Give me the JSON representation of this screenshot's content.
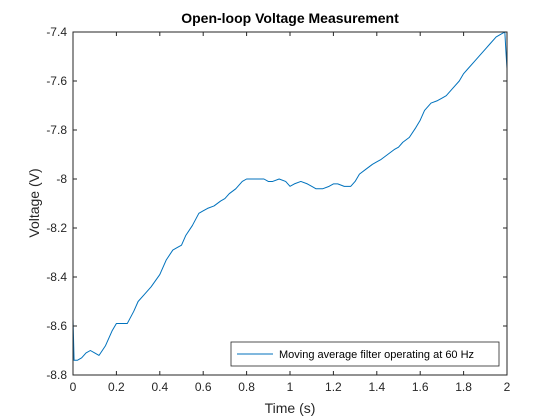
{
  "chart_data": {
    "type": "line",
    "title": "Open-loop Voltage Measurement",
    "xlabel": "Time (s)",
    "ylabel": "Voltage (V)",
    "xlim": [
      0,
      2
    ],
    "ylim": [
      -8.8,
      -7.4
    ],
    "xticks": [
      0,
      0.2,
      0.4,
      0.6,
      0.8,
      1,
      1.2,
      1.4,
      1.6,
      1.8,
      2
    ],
    "xtick_labels": [
      "0",
      "0.2",
      "0.4",
      "0.6",
      "0.8",
      "1",
      "1.2",
      "1.4",
      "1.6",
      "1.8",
      "2"
    ],
    "yticks": [
      -8.8,
      -8.6,
      -8.4,
      -8.2,
      -8,
      -7.8,
      -7.6,
      -7.4
    ],
    "ytick_labels": [
      "-8.8",
      "-8.6",
      "-8.4",
      "-8.2",
      "-8",
      "-7.8",
      "-7.6",
      "-7.4"
    ],
    "grid": false,
    "legend_position": "bottom-right",
    "colors": {
      "series": "#0072BD",
      "axes": "#262626"
    },
    "series": [
      {
        "name": "Moving average filter operating at 60 Hz",
        "x": [
          0,
          0.005,
          0.01,
          0.02,
          0.04,
          0.06,
          0.08,
          0.1,
          0.12,
          0.15,
          0.18,
          0.2,
          0.22,
          0.25,
          0.28,
          0.3,
          0.33,
          0.36,
          0.4,
          0.43,
          0.46,
          0.48,
          0.5,
          0.52,
          0.55,
          0.58,
          0.6,
          0.62,
          0.65,
          0.68,
          0.7,
          0.72,
          0.75,
          0.78,
          0.8,
          0.82,
          0.85,
          0.88,
          0.9,
          0.92,
          0.95,
          0.98,
          1.0,
          1.02,
          1.05,
          1.08,
          1.1,
          1.12,
          1.15,
          1.18,
          1.2,
          1.22,
          1.25,
          1.28,
          1.3,
          1.32,
          1.35,
          1.38,
          1.4,
          1.42,
          1.45,
          1.48,
          1.5,
          1.52,
          1.55,
          1.58,
          1.6,
          1.62,
          1.65,
          1.68,
          1.7,
          1.72,
          1.75,
          1.78,
          1.8,
          1.82,
          1.85,
          1.88,
          1.9,
          1.92,
          1.95,
          1.97,
          1.99,
          1.995,
          2.0
        ],
        "values": [
          -8.57,
          -8.74,
          -8.74,
          -8.74,
          -8.73,
          -8.71,
          -8.7,
          -8.71,
          -8.72,
          -8.68,
          -8.62,
          -8.59,
          -8.59,
          -8.59,
          -8.54,
          -8.5,
          -8.47,
          -8.44,
          -8.39,
          -8.33,
          -8.29,
          -8.28,
          -8.27,
          -8.23,
          -8.19,
          -8.14,
          -8.13,
          -8.12,
          -8.11,
          -8.09,
          -8.08,
          -8.06,
          -8.04,
          -8.01,
          -8.0,
          -8.0,
          -8.0,
          -8.0,
          -8.01,
          -8.01,
          -8.0,
          -8.01,
          -8.03,
          -8.02,
          -8.01,
          -8.02,
          -8.03,
          -8.04,
          -8.04,
          -8.03,
          -8.02,
          -8.02,
          -8.03,
          -8.03,
          -8.01,
          -7.98,
          -7.96,
          -7.94,
          -7.93,
          -7.92,
          -7.9,
          -7.88,
          -7.87,
          -7.85,
          -7.83,
          -7.79,
          -7.76,
          -7.72,
          -7.69,
          -7.68,
          -7.67,
          -7.66,
          -7.63,
          -7.6,
          -7.57,
          -7.55,
          -7.52,
          -7.49,
          -7.47,
          -7.45,
          -7.42,
          -7.41,
          -7.4,
          -7.48,
          -7.55
        ]
      }
    ]
  }
}
